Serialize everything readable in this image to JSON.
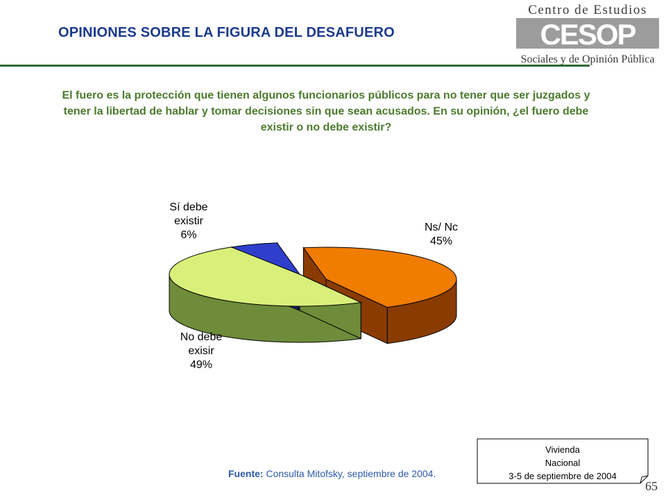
{
  "header": {
    "title": "OPINIONES SOBRE LA FIGURA  DEL DESAFUERO",
    "logo_top": "Centro de Estudios",
    "logo_mark": "CESOP",
    "logo_bottom": "Sociales y de Opinión Pública"
  },
  "question": "El fuero es la protección que tienen algunos funcionarios públicos para no tener que ser juzgados y tener la libertad de hablar y tomar decisiones sin que sean acusados. En su opinión, ¿el fuero debe existir o no debe existir?",
  "chart_data": {
    "type": "pie",
    "title": "",
    "slices": [
      {
        "label_lines": [
          "Ns/ Nc",
          "45%"
        ],
        "value": 45,
        "color": "#f07c00",
        "side": "#8a3c00"
      },
      {
        "label_lines": [
          "No debe",
          "exisir",
          "49%"
        ],
        "value": 49,
        "color": "#d8f07a",
        "side": "#6e8c3a"
      },
      {
        "label_lines": [
          "Sí debe",
          "existir",
          "6%"
        ],
        "value": 6,
        "color": "#2f3fcc",
        "side": "#1a237a"
      }
    ]
  },
  "footer": {
    "source_label": "Fuente:",
    "source_text": " Consulta Mitofsky,  septiembre de 2004.",
    "box_line1": "Vivienda",
    "box_line2": "Nacional",
    "box_line3": "3-5 de septiembre de 2004",
    "page_number": "65"
  }
}
